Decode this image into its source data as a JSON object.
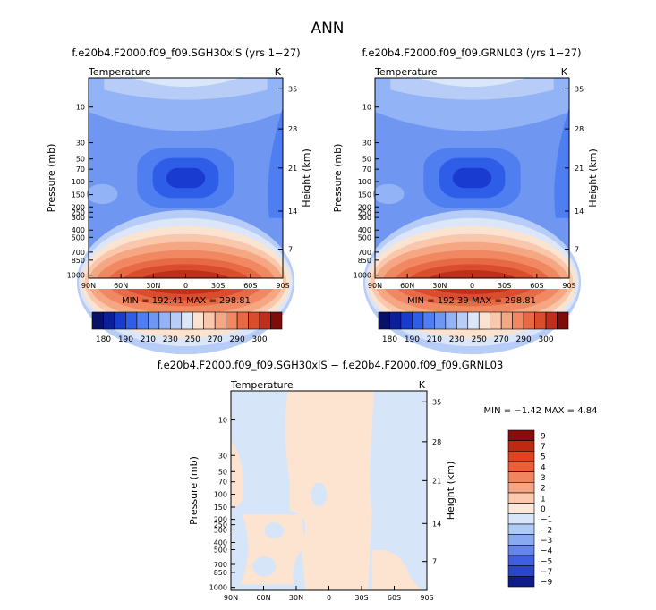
{
  "figure_title": "ANN",
  "panels": [
    {
      "title": "f.e20b4.F2000.f09_f09.SGH30xlS (yrs 1−27)",
      "variable": "Temperature",
      "units": "K",
      "stats": "MIN = 192.41   MAX = 298.81"
    },
    {
      "title": "f.e20b4.F2000.f09_f09.GRNL03 (yrs 1−27)",
      "variable": "Temperature",
      "units": "K",
      "stats": "MIN = 192.39   MAX = 298.81"
    },
    {
      "title": "f.e20b4.F2000.f09_f09.SGH30xlS − f.e20b4.F2000.f09_f09.GRNL03",
      "variable": "Temperature",
      "units": "K",
      "stats": "MIN =   −1.42   MAX =    4.84"
    }
  ],
  "chart_data": [
    {
      "type": "heatmap",
      "title": "f.e20b4.F2000.f09_f09.SGH30xlS (yrs 1−27)",
      "subtitle": "Temperature",
      "xlabel": "",
      "ylabel": "Pressure (mb)",
      "y2label": "Height (km)",
      "units": "K",
      "x_ticks": [
        "90N",
        "60N",
        "30N",
        "0",
        "30S",
        "60S",
        "90S"
      ],
      "y_ticks": [
        "10",
        "30",
        "50",
        "70",
        "100",
        "150",
        "200",
        "250",
        "300",
        "400",
        "500",
        "700",
        "850",
        "1000"
      ],
      "y2_ticks": [
        "35",
        "28",
        "21",
        "14",
        "7"
      ],
      "min": 192.41,
      "max": 298.81,
      "colorbar_labels": [
        "180",
        "190",
        "210",
        "230",
        "250",
        "270",
        "290",
        "300"
      ]
    },
    {
      "type": "heatmap",
      "title": "f.e20b4.F2000.f09_f09.GRNL03 (yrs 1−27)",
      "subtitle": "Temperature",
      "xlabel": "",
      "ylabel": "Pressure (mb)",
      "y2label": "Height (km)",
      "units": "K",
      "x_ticks": [
        "90N",
        "60N",
        "30N",
        "0",
        "30S",
        "60S",
        "90S"
      ],
      "y_ticks": [
        "10",
        "30",
        "50",
        "70",
        "100",
        "150",
        "200",
        "250",
        "300",
        "400",
        "500",
        "700",
        "850",
        "1000"
      ],
      "y2_ticks": [
        "35",
        "28",
        "21",
        "14",
        "7"
      ],
      "min": 192.39,
      "max": 298.81,
      "colorbar_labels": [
        "180",
        "190",
        "210",
        "230",
        "250",
        "270",
        "290",
        "300"
      ]
    },
    {
      "type": "heatmap",
      "title": "f.e20b4.F2000.f09_f09.SGH30xlS − f.e20b4.F2000.f09_f09.GRNL03",
      "subtitle": "Temperature",
      "xlabel": "",
      "ylabel": "Pressure (mb)",
      "y2label": "Height (km)",
      "units": "K",
      "x_ticks": [
        "90N",
        "60N",
        "30N",
        "0",
        "30S",
        "60S",
        "90S"
      ],
      "y_ticks": [
        "10",
        "30",
        "50",
        "70",
        "100",
        "150",
        "200",
        "250",
        "300",
        "400",
        "500",
        "700",
        "850",
        "1000"
      ],
      "y2_ticks": [
        "35",
        "28",
        "21",
        "14",
        "7"
      ],
      "min": -1.42,
      "max": 4.84,
      "colorbar_labels": [
        "9",
        "7",
        "5",
        "4",
        "3",
        "2",
        "1",
        "0",
        "−1",
        "−2",
        "−3",
        "−4",
        "−5",
        "−7",
        "−9"
      ]
    }
  ],
  "colors": {
    "temp_scale": [
      "#08106a",
      "#0b1f9a",
      "#1a3bd0",
      "#2e5ee8",
      "#4f7ef0",
      "#6f97f2",
      "#92b3f5",
      "#b7cdf7",
      "#dbe6f9",
      "#fbe3d2",
      "#f9c7ab",
      "#f5a683",
      "#f08862",
      "#e86a45",
      "#d94c2e",
      "#c02f1c",
      "#7f0c0c"
    ],
    "diff_scale": [
      "#8b0c0c",
      "#c0280f",
      "#e0431f",
      "#ee5d37",
      "#f2855f",
      "#f6a484",
      "#fbc9ad",
      "#fde9dc",
      "#d7e6fb",
      "#aecaf7",
      "#89aaf1",
      "#6585ea",
      "#3f5ee0",
      "#2a45c9",
      "#0f1c8a"
    ],
    "diff_positive": "#fde4d1",
    "diff_negative": "#d6e6f8"
  }
}
